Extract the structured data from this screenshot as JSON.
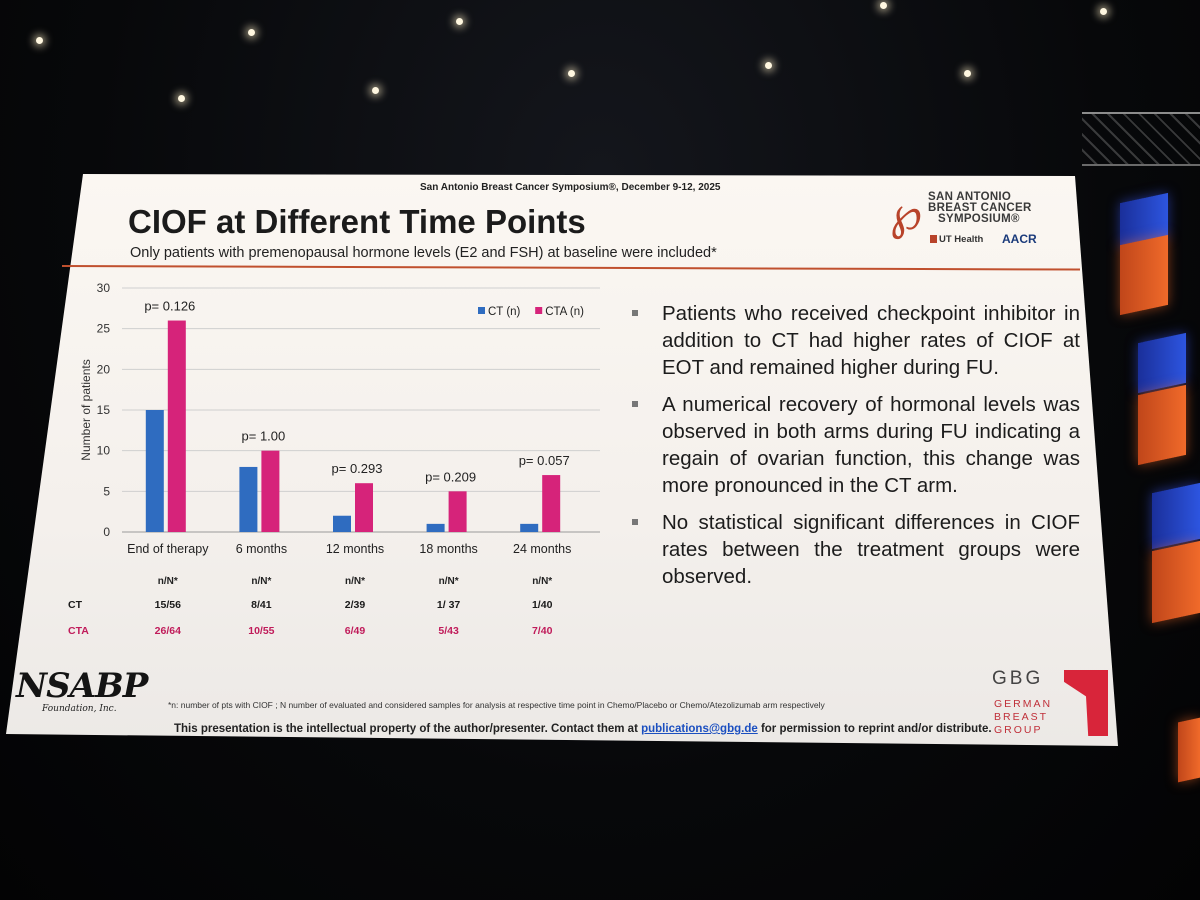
{
  "conference": {
    "line": "San Antonio Breast Cancer Symposium®, December 9-12, 2025",
    "logo_lines": [
      "SAN ANTONIO",
      "BREAST CANCER",
      "SYMPOSIUM®"
    ],
    "partners": [
      "UT Health",
      "AACR"
    ]
  },
  "slide": {
    "title": "CIOF at Different Time Points",
    "subtitle": "Only patients with premenopausal hormone levels (E2 and FSH) at baseline were included*"
  },
  "chart_data": {
    "type": "bar",
    "categories": [
      "End of therapy",
      "6 months",
      "12 months",
      "18 months",
      "24 months"
    ],
    "series": [
      {
        "name": "CT (n)",
        "values": [
          15,
          8,
          2,
          1,
          1
        ],
        "color": "#2f6cc0"
      },
      {
        "name": "CTA (n)",
        "values": [
          26,
          10,
          6,
          5,
          7
        ],
        "color": "#d6237a"
      }
    ],
    "p_values": [
      "p= 0.126",
      "p= 1.00",
      "p= 0.293",
      "p= 0.209",
      "p= 0.057"
    ],
    "ylabel": "Number of patients",
    "ylim": [
      0,
      30
    ],
    "yticks": [
      0,
      5,
      10,
      15,
      20,
      25,
      30
    ],
    "grid": true,
    "legend_position": "top-right",
    "table": {
      "header": "n/N*",
      "rows": [
        {
          "label": "CT",
          "color": "#1a1a1a",
          "values": [
            "15/56",
            "8/41",
            "2/39",
            "1/ 37",
            "1/40"
          ]
        },
        {
          "label": "CTA",
          "color": "#c01b5a",
          "values": [
            "26/64",
            "10/55",
            "6/49",
            "5/43",
            "7/40"
          ]
        }
      ]
    }
  },
  "bullets": [
    "Patients who received checkpoint inhibitor in addition to CT had higher rates of CIOF at EOT and remained higher during FU.",
    "A numerical recovery of hormonal levels was observed in both arms during FU indicating a regain of ovarian function, this change was more pronounced in the CT arm.",
    "No statistical significant differences in CIOF rates between the treatment groups were observed."
  ],
  "footer": {
    "nsabp": "NSABP",
    "nsabp_sub": "Foundation, Inc.",
    "footnote": "*n: number of pts with CIOF ; N number of evaluated  and considered samples for analysis at respective time point in Chemo/Placebo or Chemo/Atezolizumab arm respectively",
    "disclaimer_pre": "This presentation is the intellectual property of the author/presenter. Contact them at ",
    "disclaimer_link": "publications@gbg.de",
    "disclaimer_post": " for permission to reprint and/or distribute.",
    "gbg_abbr": "GBG",
    "gbg_lines": [
      "GERMAN",
      "BREAST",
      "GROUP"
    ]
  }
}
